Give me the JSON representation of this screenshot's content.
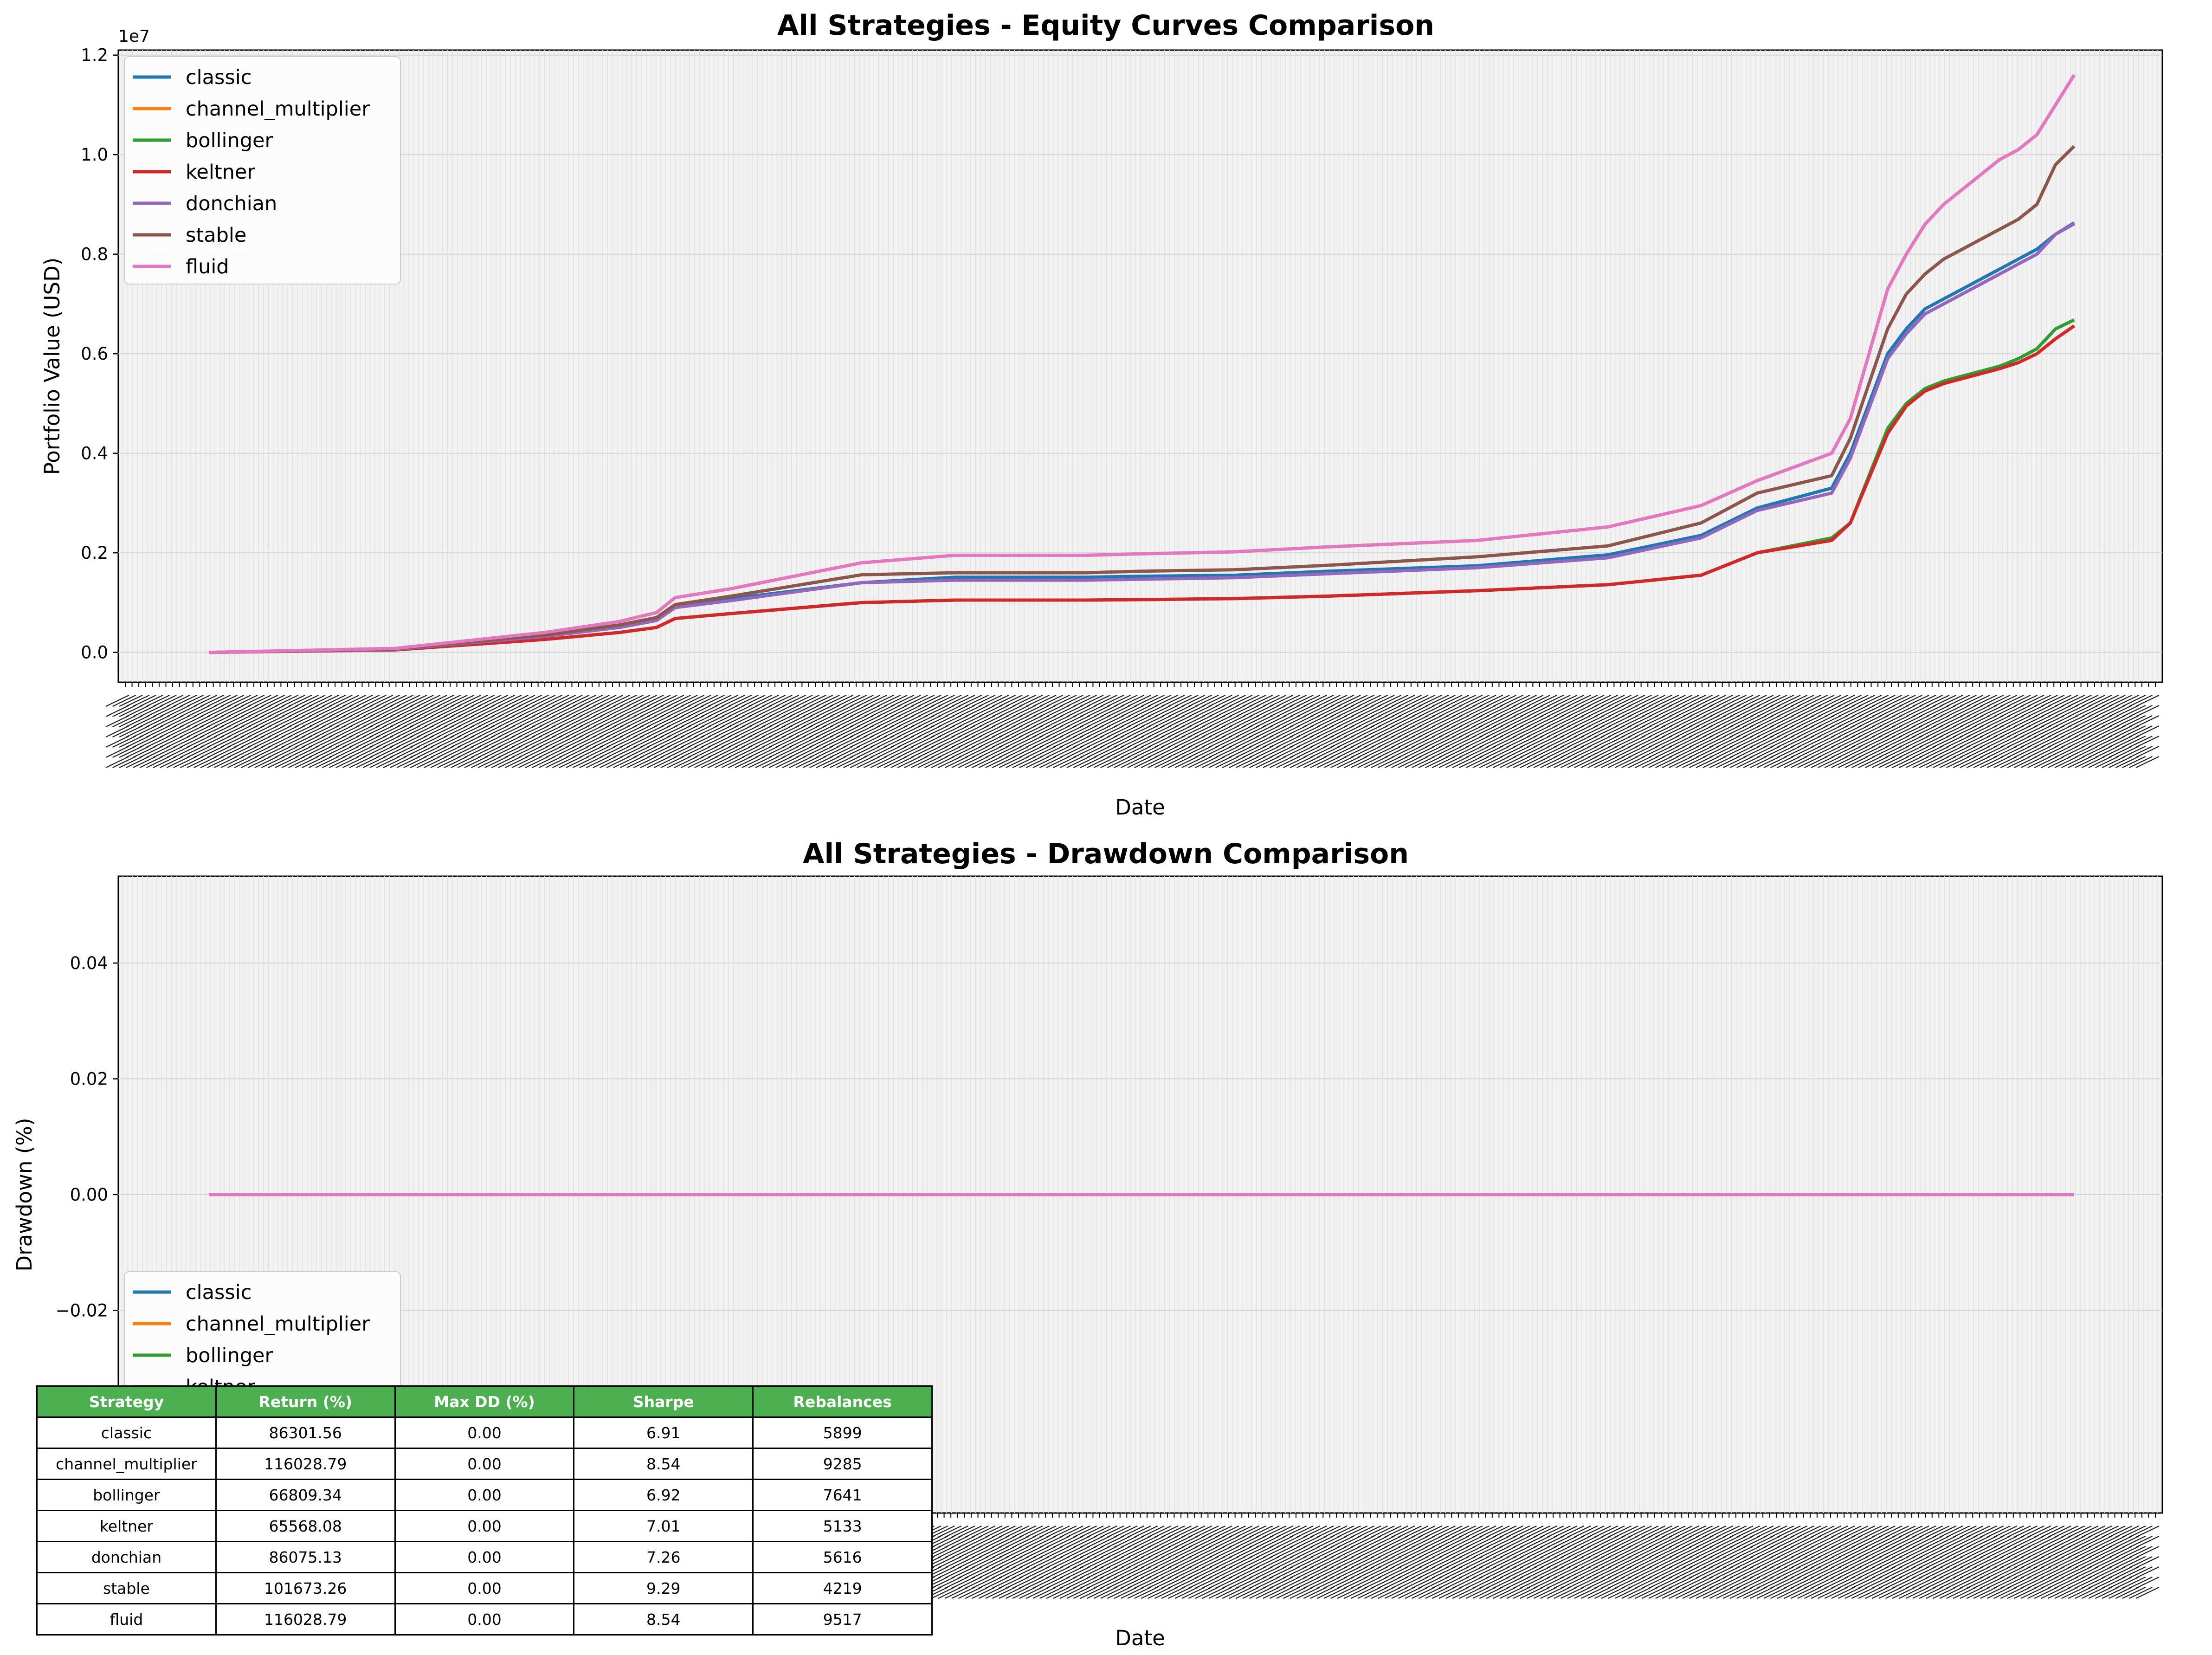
{
  "chart_data": [
    {
      "type": "line",
      "title": "All Strategies - Equity Curves Comparison",
      "xlabel": "Date",
      "ylabel": "Portfolio Value (USD)",
      "y_offset_label": "1e7",
      "yticks": [
        "0.0",
        "0.2",
        "0.4",
        "0.6",
        "0.8",
        "1.0",
        "1.2"
      ],
      "ylim": [
        -0.06,
        1.21
      ],
      "x": [
        0,
        10,
        18,
        22,
        24,
        25,
        28,
        35,
        40,
        47,
        50,
        55,
        60,
        68,
        75,
        80,
        83,
        87,
        88,
        90,
        91,
        92,
        93,
        94,
        95,
        96,
        97,
        98,
        99,
        100
      ],
      "grid": true,
      "legend_position": "upper-left",
      "series": [
        {
          "name": "classic",
          "color": "#1f77b4",
          "values": [
            0.0,
            0.006,
            0.034,
            0.052,
            0.066,
            0.093,
            0.108,
            0.14,
            0.151,
            0.151,
            0.153,
            0.155,
            0.163,
            0.174,
            0.196,
            0.235,
            0.29,
            0.33,
            0.4,
            0.6,
            0.65,
            0.69,
            0.71,
            0.73,
            0.75,
            0.77,
            0.79,
            0.81,
            0.84,
            0.863
          ]
        },
        {
          "name": "channel_multiplier",
          "color": "#ff7f0e",
          "values": [
            0.0,
            0.008,
            0.04,
            0.062,
            0.08,
            0.11,
            0.128,
            0.18,
            0.195,
            0.195,
            0.198,
            0.202,
            0.212,
            0.225,
            0.252,
            0.295,
            0.345,
            0.4,
            0.47,
            0.73,
            0.8,
            0.86,
            0.9,
            0.93,
            0.96,
            0.99,
            1.01,
            1.04,
            1.1,
            1.16
          ]
        },
        {
          "name": "bollinger",
          "color": "#2ca02c",
          "values": [
            0.0,
            0.005,
            0.026,
            0.04,
            0.05,
            0.068,
            0.078,
            0.1,
            0.105,
            0.105,
            0.106,
            0.108,
            0.113,
            0.124,
            0.136,
            0.155,
            0.2,
            0.23,
            0.26,
            0.45,
            0.5,
            0.53,
            0.545,
            0.555,
            0.565,
            0.575,
            0.59,
            0.61,
            0.65,
            0.668
          ]
        },
        {
          "name": "keltner",
          "color": "#d62728",
          "values": [
            0.0,
            0.005,
            0.026,
            0.04,
            0.05,
            0.068,
            0.078,
            0.1,
            0.105,
            0.105,
            0.106,
            0.108,
            0.113,
            0.124,
            0.136,
            0.155,
            0.2,
            0.225,
            0.26,
            0.44,
            0.495,
            0.525,
            0.54,
            0.55,
            0.56,
            0.57,
            0.582,
            0.6,
            0.63,
            0.656
          ]
        },
        {
          "name": "donchian",
          "color": "#9467bd",
          "values": [
            0.0,
            0.006,
            0.032,
            0.05,
            0.064,
            0.09,
            0.104,
            0.14,
            0.145,
            0.145,
            0.147,
            0.15,
            0.158,
            0.17,
            0.19,
            0.23,
            0.285,
            0.32,
            0.39,
            0.59,
            0.64,
            0.68,
            0.7,
            0.72,
            0.74,
            0.76,
            0.78,
            0.8,
            0.84,
            0.861
          ]
        },
        {
          "name": "stable",
          "color": "#8c564b",
          "values": [
            0.0,
            0.007,
            0.035,
            0.055,
            0.07,
            0.096,
            0.113,
            0.156,
            0.16,
            0.16,
            0.163,
            0.166,
            0.175,
            0.192,
            0.214,
            0.26,
            0.32,
            0.355,
            0.43,
            0.65,
            0.72,
            0.76,
            0.79,
            0.81,
            0.83,
            0.85,
            0.87,
            0.9,
            0.98,
            1.017
          ]
        },
        {
          "name": "fluid",
          "color": "#e377c2",
          "values": [
            0.0,
            0.008,
            0.04,
            0.062,
            0.08,
            0.11,
            0.128,
            0.18,
            0.195,
            0.195,
            0.198,
            0.202,
            0.212,
            0.225,
            0.252,
            0.295,
            0.345,
            0.4,
            0.47,
            0.73,
            0.8,
            0.86,
            0.9,
            0.93,
            0.96,
            0.99,
            1.01,
            1.04,
            1.1,
            1.16
          ]
        }
      ]
    },
    {
      "type": "line",
      "title": "All Strategies - Drawdown Comparison",
      "xlabel": "Date",
      "ylabel": "Drawdown (%)",
      "yticks": [
        "−0.02",
        "0.00",
        "0.02",
        "0.04"
      ],
      "ylim": [
        -0.055,
        0.055
      ],
      "x": [
        0,
        100
      ],
      "grid": true,
      "legend_position": "lower-left",
      "series": [
        {
          "name": "classic",
          "color": "#1f77b4",
          "values": [
            0.0,
            0.0
          ]
        },
        {
          "name": "channel_multiplier",
          "color": "#ff7f0e",
          "values": [
            0.0,
            0.0
          ]
        },
        {
          "name": "bollinger",
          "color": "#2ca02c",
          "values": [
            0.0,
            0.0
          ]
        },
        {
          "name": "keltner",
          "color": "#d62728",
          "values": [
            0.0,
            0.0
          ]
        },
        {
          "name": "donchian",
          "color": "#9467bd",
          "values": [
            0.0,
            0.0
          ]
        },
        {
          "name": "stable",
          "color": "#8c564b",
          "values": [
            0.0,
            0.0
          ]
        },
        {
          "name": "fluid",
          "color": "#e377c2",
          "values": [
            0.0,
            0.0
          ]
        }
      ]
    }
  ],
  "table": {
    "header_color": "#4caf50",
    "headers": [
      "Strategy",
      "Return (%)",
      "Max DD (%)",
      "Sharpe",
      "Rebalances"
    ],
    "rows": [
      [
        "classic",
        "86301.56",
        "0.00",
        "6.91",
        "5899"
      ],
      [
        "channel_multiplier",
        "116028.79",
        "0.00",
        "8.54",
        "9285"
      ],
      [
        "bollinger",
        "66809.34",
        "0.00",
        "6.92",
        "7641"
      ],
      [
        "keltner",
        "65568.08",
        "0.00",
        "7.01",
        "5133"
      ],
      [
        "donchian",
        "86075.13",
        "0.00",
        "7.26",
        "5616"
      ],
      [
        "stable",
        "101673.26",
        "0.00",
        "9.29",
        "4219"
      ],
      [
        "fluid",
        "116028.79",
        "0.00",
        "8.54",
        "9517"
      ]
    ]
  }
}
